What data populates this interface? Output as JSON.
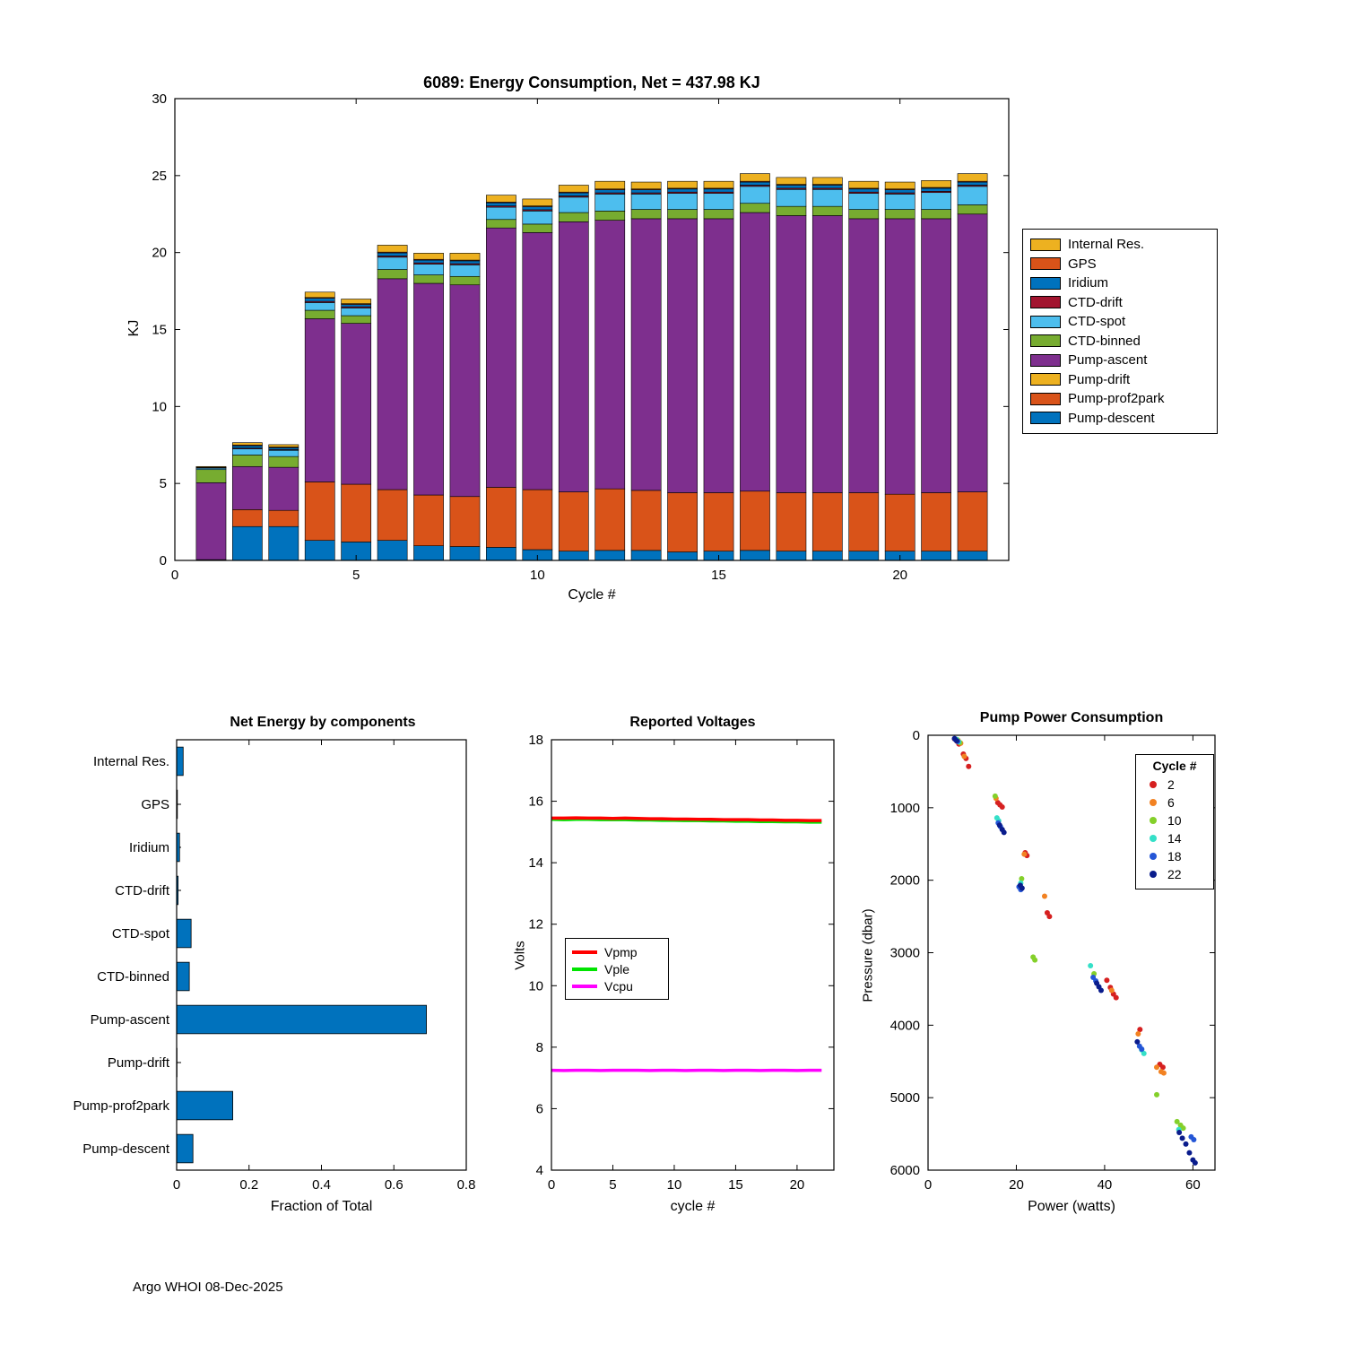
{
  "figure": {
    "footer": "Argo WHOI 08-Dec-2025",
    "background": "#ffffff"
  },
  "chart_data": [
    {
      "type": "bar",
      "stacked": true,
      "title": "6089: Energy Consumption,  Net = 437.98 KJ",
      "xlabel": "Cycle #",
      "ylabel": "KJ",
      "xlim": [
        0,
        23
      ],
      "ylim": [
        0,
        30
      ],
      "xticks": [
        0,
        5,
        10,
        15,
        20
      ],
      "yticks": [
        0,
        5,
        10,
        15,
        20,
        25,
        30
      ],
      "x": [
        1,
        2,
        3,
        4,
        5,
        6,
        7,
        8,
        9,
        10,
        11,
        12,
        13,
        14,
        15,
        16,
        17,
        18,
        19,
        20,
        21,
        22
      ],
      "series": [
        {
          "name": "Pump-descent",
          "color": "#0072BD",
          "values": [
            0.05,
            2.2,
            2.2,
            1.3,
            1.2,
            1.3,
            0.95,
            0.9,
            0.85,
            0.7,
            0.6,
            0.65,
            0.65,
            0.55,
            0.6,
            0.65,
            0.6,
            0.6,
            0.6,
            0.6,
            0.6,
            0.6
          ]
        },
        {
          "name": "Pump-prof2park",
          "color": "#D95319",
          "values": [
            0,
            1.1,
            1.05,
            3.8,
            3.75,
            3.3,
            3.3,
            3.25,
            3.9,
            3.9,
            3.85,
            4.0,
            3.9,
            3.85,
            3.8,
            3.85,
            3.8,
            3.8,
            3.8,
            3.7,
            3.8,
            3.85
          ]
        },
        {
          "name": "Pump-drift",
          "color": "#EDB120",
          "values": [
            0,
            0,
            0,
            0,
            0,
            0,
            0,
            0,
            0,
            0,
            0,
            0,
            0,
            0,
            0,
            0,
            0,
            0,
            0,
            0,
            0,
            0
          ]
        },
        {
          "name": "Pump-ascent",
          "color": "#7E2F8E",
          "values": [
            5.0,
            2.8,
            2.8,
            10.6,
            10.45,
            13.7,
            13.75,
            13.75,
            16.85,
            16.7,
            17.55,
            17.45,
            17.65,
            17.8,
            17.8,
            18.1,
            18.0,
            18.0,
            17.8,
            17.9,
            17.8,
            18.05
          ]
        },
        {
          "name": "CTD-binned",
          "color": "#77AC30",
          "values": [
            0.85,
            0.75,
            0.7,
            0.55,
            0.5,
            0.6,
            0.55,
            0.55,
            0.55,
            0.55,
            0.6,
            0.6,
            0.6,
            0.6,
            0.6,
            0.6,
            0.6,
            0.6,
            0.6,
            0.6,
            0.6,
            0.6
          ]
        },
        {
          "name": "CTD-spot",
          "color": "#4DBEEE",
          "values": [
            0.1,
            0.4,
            0.4,
            0.5,
            0.5,
            0.8,
            0.7,
            0.75,
            0.8,
            0.85,
            1.0,
            1.1,
            1.0,
            1.05,
            1.05,
            1.1,
            1.1,
            1.1,
            1.05,
            1.0,
            1.1,
            1.2
          ]
        },
        {
          "name": "CTD-drift",
          "color": "#A2142F",
          "values": [
            0.02,
            0.05,
            0.05,
            0.08,
            0.08,
            0.08,
            0.08,
            0.08,
            0.08,
            0.08,
            0.08,
            0.08,
            0.08,
            0.08,
            0.08,
            0.08,
            0.08,
            0.08,
            0.08,
            0.08,
            0.08,
            0.08
          ]
        },
        {
          "name": "Iridium",
          "color": "#0072BD",
          "values": [
            0.02,
            0.15,
            0.12,
            0.2,
            0.15,
            0.2,
            0.18,
            0.18,
            0.2,
            0.2,
            0.2,
            0.2,
            0.2,
            0.2,
            0.2,
            0.2,
            0.2,
            0.2,
            0.2,
            0.2,
            0.2,
            0.2
          ]
        },
        {
          "name": "GPS",
          "color": "#D95319",
          "values": [
            0.01,
            0.05,
            0.05,
            0.05,
            0.05,
            0.05,
            0.05,
            0.05,
            0.05,
            0.05,
            0.05,
            0.05,
            0.05,
            0.05,
            0.05,
            0.05,
            0.05,
            0.05,
            0.05,
            0.05,
            0.05,
            0.05
          ]
        },
        {
          "name": "Internal Res.",
          "color": "#EDB120",
          "values": [
            0.05,
            0.15,
            0.15,
            0.35,
            0.3,
            0.45,
            0.4,
            0.45,
            0.45,
            0.45,
            0.45,
            0.5,
            0.45,
            0.45,
            0.45,
            0.5,
            0.45,
            0.45,
            0.45,
            0.45,
            0.45,
            0.5
          ]
        }
      ],
      "legend_order": [
        "Internal Res.",
        "GPS",
        "Iridium",
        "CTD-drift",
        "CTD-spot",
        "CTD-binned",
        "Pump-ascent",
        "Pump-drift",
        "Pump-prof2park",
        "Pump-descent"
      ],
      "legend_position": "right"
    },
    {
      "type": "bar",
      "orientation": "horizontal",
      "title": "Net Energy by components",
      "xlabel": "Fraction of Total",
      "categories": [
        "Internal Res.",
        "GPS",
        "Iridium",
        "CTD-drift",
        "CTD-spot",
        "CTD-binned",
        "Pump-ascent",
        "Pump-drift",
        "Pump-prof2park",
        "Pump-descent"
      ],
      "values": [
        0.018,
        0.002,
        0.008,
        0.004,
        0.04,
        0.035,
        0.69,
        0.001,
        0.155,
        0.045
      ],
      "xlim": [
        0,
        0.8
      ],
      "xticks": [
        0,
        0.2,
        0.4,
        0.6,
        0.8
      ],
      "bar_color": "#0072BD"
    },
    {
      "type": "line",
      "title": "Reported Voltages",
      "xlabel": "cycle #",
      "ylabel": "Volts",
      "xlim": [
        0,
        23
      ],
      "ylim": [
        4,
        18
      ],
      "xticks": [
        0,
        5,
        10,
        15,
        20
      ],
      "yticks": [
        4,
        6,
        8,
        10,
        12,
        14,
        16,
        18
      ],
      "x": [
        0,
        1,
        2,
        3,
        4,
        5,
        6,
        7,
        8,
        9,
        10,
        11,
        12,
        13,
        14,
        15,
        16,
        17,
        18,
        19,
        20,
        21,
        22
      ],
      "series": [
        {
          "name": "Vpmp",
          "color": "#FF0000",
          "values": [
            15.45,
            15.45,
            15.46,
            15.45,
            15.45,
            15.44,
            15.45,
            15.44,
            15.43,
            15.43,
            15.42,
            15.42,
            15.41,
            15.41,
            15.4,
            15.4,
            15.4,
            15.39,
            15.39,
            15.38,
            15.38,
            15.37,
            15.37
          ]
        },
        {
          "name": "Vple",
          "color": "#00E400",
          "values": [
            15.41,
            15.4,
            15.41,
            15.41,
            15.4,
            15.4,
            15.4,
            15.39,
            15.39,
            15.38,
            15.38,
            15.37,
            15.37,
            15.36,
            15.36,
            15.35,
            15.35,
            15.34,
            15.34,
            15.33,
            15.33,
            15.32,
            15.32
          ]
        },
        {
          "name": "Vcpu",
          "color": "#FF00FF",
          "values": [
            7.25,
            7.24,
            7.25,
            7.25,
            7.24,
            7.25,
            7.25,
            7.25,
            7.24,
            7.25,
            7.25,
            7.24,
            7.25,
            7.25,
            7.24,
            7.25,
            7.25,
            7.24,
            7.25,
            7.25,
            7.24,
            7.25,
            7.25
          ]
        }
      ],
      "legend_position": "middle-left"
    },
    {
      "type": "scatter",
      "title": "Pump Power Consumption",
      "xlabel": "Power (watts)",
      "ylabel": "Pressure (dbar)",
      "xlim": [
        0,
        65
      ],
      "ylim": [
        0,
        6000
      ],
      "y_reversed": true,
      "xticks": [
        0,
        20,
        40,
        60
      ],
      "yticks": [
        0,
        1000,
        2000,
        3000,
        4000,
        5000,
        6000
      ],
      "legend_title": "Cycle #",
      "series": [
        {
          "name": "2",
          "color": "#D62020",
          "points": [
            [
              6,
              50
            ],
            [
              6.5,
              80
            ],
            [
              7,
              120
            ],
            [
              8,
              260
            ],
            [
              8.6,
              320
            ],
            [
              9.2,
              430
            ],
            [
              15.8,
              930
            ],
            [
              16.3,
              960
            ],
            [
              16.8,
              990
            ],
            [
              22,
              1620
            ],
            [
              22.4,
              1660
            ],
            [
              27,
              2450
            ],
            [
              27.5,
              2500
            ],
            [
              40.5,
              3380
            ],
            [
              41.3,
              3480
            ],
            [
              42,
              3570
            ],
            [
              42.6,
              3620
            ],
            [
              48,
              4060
            ],
            [
              52.5,
              4540
            ],
            [
              53.2,
              4580
            ]
          ]
        },
        {
          "name": "6",
          "color": "#F28222",
          "points": [
            [
              6.8,
              70
            ],
            [
              7.4,
              110
            ],
            [
              8.2,
              290
            ],
            [
              15.4,
              870
            ],
            [
              21.8,
              1640
            ],
            [
              26.4,
              2220
            ],
            [
              41.6,
              3520
            ],
            [
              47.6,
              4120
            ],
            [
              51.8,
              4580
            ],
            [
              52.8,
              4640
            ],
            [
              53.4,
              4660
            ]
          ]
        },
        {
          "name": "10",
          "color": "#84D02A",
          "points": [
            [
              6.6,
              60
            ],
            [
              7.2,
              100
            ],
            [
              15.2,
              840
            ],
            [
              21.2,
              1980
            ],
            [
              23.8,
              3060
            ],
            [
              24.2,
              3100
            ],
            [
              37.6,
              3290
            ],
            [
              51.8,
              4960
            ],
            [
              56.4,
              5330
            ],
            [
              57.2,
              5380
            ],
            [
              57.8,
              5420
            ]
          ]
        },
        {
          "name": "14",
          "color": "#35E0C8",
          "points": [
            [
              6.4,
              55
            ],
            [
              6.9,
              90
            ],
            [
              15.6,
              1140
            ],
            [
              16,
              1180
            ],
            [
              21,
              2040
            ],
            [
              36.8,
              3180
            ],
            [
              48.4,
              4340
            ],
            [
              48.9,
              4390
            ],
            [
              56.8,
              5440
            ]
          ]
        },
        {
          "name": "18",
          "color": "#2456D6",
          "points": [
            [
              6.2,
              60
            ],
            [
              6.7,
              85
            ],
            [
              15.9,
              1210
            ],
            [
              16.4,
              1260
            ],
            [
              20.6,
              2090
            ],
            [
              21,
              2130
            ],
            [
              37.4,
              3340
            ],
            [
              38,
              3390
            ],
            [
              47.9,
              4290
            ],
            [
              48.4,
              4330
            ],
            [
              59.6,
              5540
            ],
            [
              60.2,
              5580
            ]
          ]
        },
        {
          "name": "22",
          "color": "#0A1C8C",
          "points": [
            [
              6,
              45
            ],
            [
              6.5,
              75
            ],
            [
              16.2,
              1240
            ],
            [
              16.8,
              1300
            ],
            [
              17.2,
              1340
            ],
            [
              20.9,
              2070
            ],
            [
              21.3,
              2110
            ],
            [
              38.2,
              3420
            ],
            [
              38.7,
              3470
            ],
            [
              39.2,
              3520
            ],
            [
              47.4,
              4230
            ],
            [
              56.9,
              5480
            ],
            [
              57.6,
              5560
            ],
            [
              58.4,
              5640
            ],
            [
              59.2,
              5760
            ],
            [
              60,
              5860
            ],
            [
              60.5,
              5900
            ]
          ]
        }
      ],
      "legend_position": "top-right"
    }
  ]
}
